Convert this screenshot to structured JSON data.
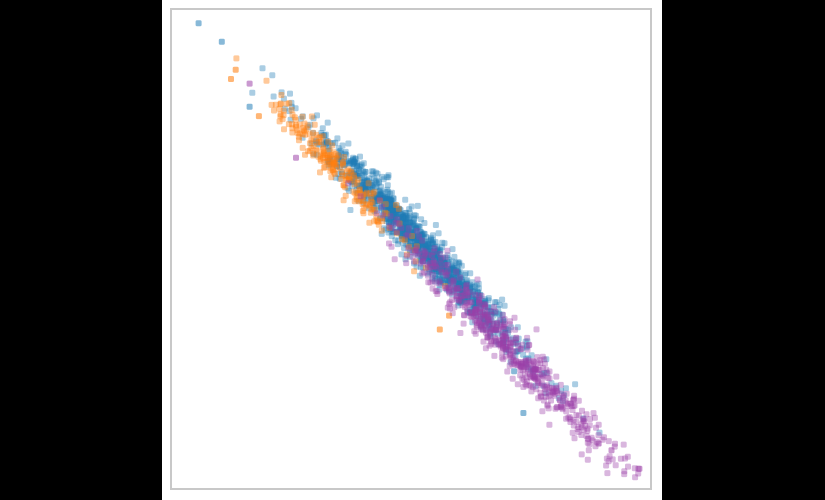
{
  "chart_data": {
    "type": "scatter",
    "title": "",
    "xlabel": "",
    "ylabel": "",
    "xlim": [
      0,
      1
    ],
    "ylim": [
      0,
      1
    ],
    "grid": false,
    "legend": "none",
    "ticks_visible": false,
    "colors": {
      "background": "#ffffff",
      "frame": "#c8c8c8",
      "outer": "#000000"
    },
    "series": [
      {
        "color": "#1f7bb6",
        "alpha": 0.38,
        "count": 1150,
        "trend": {
          "x_from": 0.12,
          "x_to": 0.93,
          "y_at_x0": 1.05,
          "slope": -1.05
        },
        "x_center": 0.52,
        "x_spread": 0.11,
        "y_noise": 0.024,
        "highlights": [
          [
            0.04,
            0.98
          ],
          [
            0.09,
            0.94
          ],
          [
            0.15,
            0.8
          ],
          [
            0.74,
            0.14
          ],
          [
            0.72,
            0.23
          ]
        ]
      },
      {
        "color": "#ff7f0e",
        "alpha": 0.42,
        "count": 210,
        "trend": {
          "x_from": 0.12,
          "x_to": 0.6,
          "y_at_x0": 1.02,
          "slope": -1.04
        },
        "x_center": 0.33,
        "x_spread": 0.075,
        "y_noise": 0.022,
        "highlights": [
          [
            0.12,
            0.88
          ],
          [
            0.11,
            0.86
          ],
          [
            0.17,
            0.78
          ],
          [
            0.58,
            0.35
          ],
          [
            0.56,
            0.32
          ],
          [
            0.31,
            0.7
          ]
        ]
      },
      {
        "color": "#9b3fa7",
        "alpha": 0.38,
        "count": 560,
        "trend": {
          "x_from": 0.22,
          "x_to": 0.99,
          "y_at_x0": 1.02,
          "slope": -1.04
        },
        "x_center": 0.71,
        "x_spread": 0.12,
        "y_noise": 0.026,
        "highlights": [
          [
            0.99,
            0.02
          ],
          [
            0.93,
            0.06
          ],
          [
            0.15,
            0.85
          ],
          [
            0.25,
            0.69
          ]
        ]
      }
    ]
  }
}
